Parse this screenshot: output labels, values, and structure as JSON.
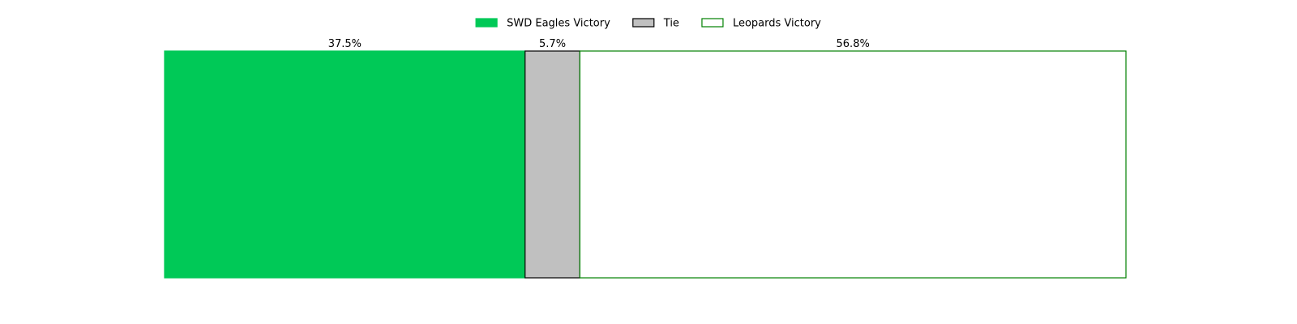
{
  "chart_data": {
    "type": "bar",
    "orientation": "horizontal-stacked",
    "title": "",
    "xlabel": "",
    "ylabel": "",
    "xlim": [
      0,
      100
    ],
    "grid": false,
    "axes_visible": false,
    "legend_position": "top-center",
    "legend_ncol": 3,
    "series": [
      {
        "name": "SWD Eagles Victory",
        "value": 37.5,
        "label": "37.5%",
        "fill": "#00c957",
        "edge": "#00c957"
      },
      {
        "name": "Tie",
        "value": 5.7,
        "label": "5.7%",
        "fill": "#c0c0c0",
        "edge": "#000000"
      },
      {
        "name": "Leopards Victory",
        "value": 56.8,
        "label": "56.8%",
        "fill": "#ffffff",
        "edge": "#008000"
      }
    ]
  }
}
